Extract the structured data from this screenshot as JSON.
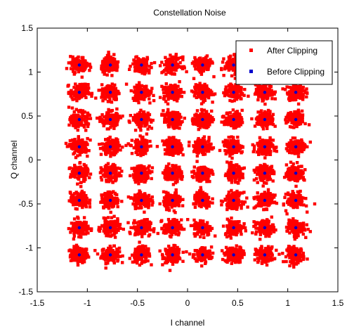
{
  "chart_data": {
    "type": "scatter",
    "title": "Constellation Noise",
    "xlabel": "I channel",
    "ylabel": "Q channel",
    "xlim": [
      -1.5,
      1.5
    ],
    "ylim": [
      -1.5,
      1.5
    ],
    "xticks": [
      -1.5,
      -1,
      -0.5,
      0,
      0.5,
      1,
      1.5
    ],
    "yticks": [
      -1.5,
      -1,
      -0.5,
      0,
      0.5,
      1,
      1.5
    ],
    "xtick_labels": [
      "-1.5",
      "-1",
      "-0.5",
      "0",
      "0.5",
      "1",
      "1.5"
    ],
    "ytick_labels": [
      "-1.5",
      "-1",
      "-0.5",
      "0",
      "0.5",
      "1",
      "1.5"
    ],
    "grid": false,
    "legend_position": "top-right",
    "constellation_levels": [
      -1.08,
      -0.77,
      -0.46,
      -0.15,
      0.15,
      0.46,
      0.77,
      1.08
    ],
    "series": [
      {
        "name": "After Clipping",
        "color": "#ff0000",
        "marker": "dense noisy cluster around each constellation point",
        "cluster_spread": 0.08
      },
      {
        "name": "Before Clipping",
        "color": "#0000cc",
        "marker": "dot at each constellation point"
      }
    ]
  }
}
